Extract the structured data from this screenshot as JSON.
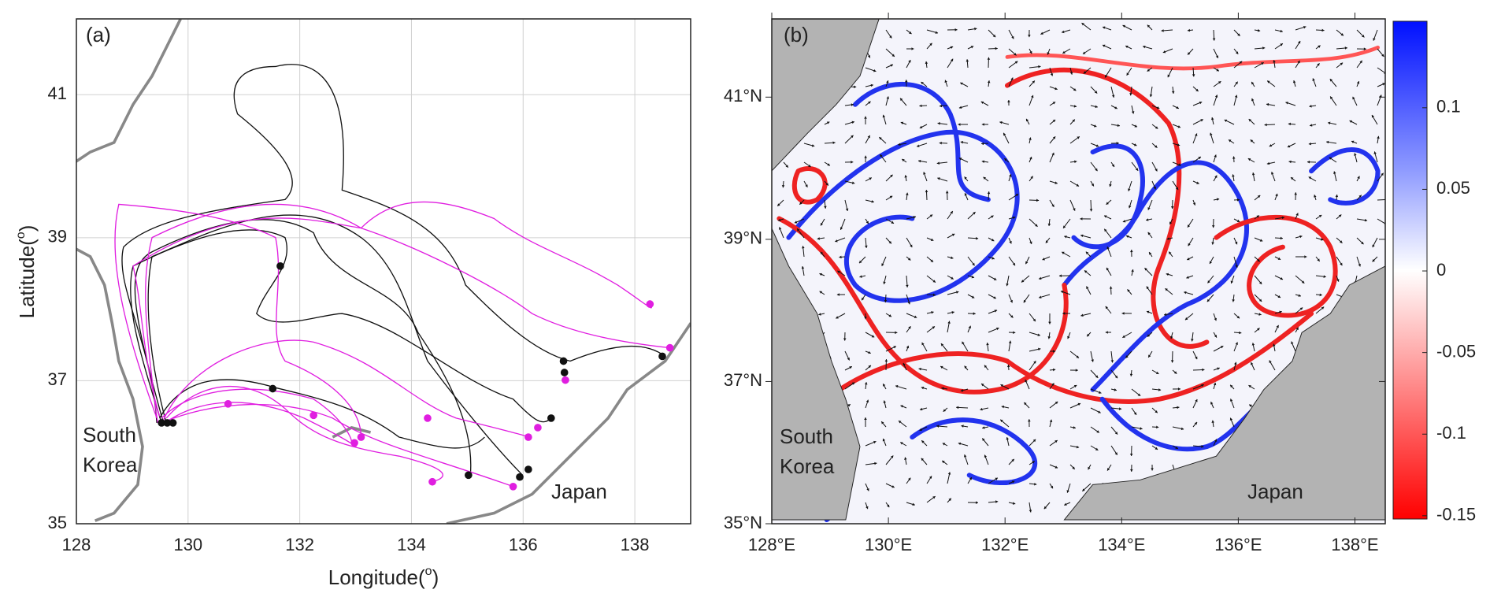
{
  "panels": [
    {
      "label": "(a)",
      "xlabel": "Longitude(",
      "xlabel_sup": "o",
      "xlabel_end": ")",
      "ylabel": "Latitude(",
      "ylabel_sup": "o",
      "ylabel_end": ")",
      "xlim": [
        128,
        139.0
      ],
      "ylim": [
        35,
        42.06
      ],
      "xticks": [
        128,
        130,
        132,
        134,
        136,
        138
      ],
      "yticks": [
        35,
        37,
        39,
        41
      ],
      "regions": [
        "South",
        "Korea",
        "Japan"
      ],
      "grid": true
    },
    {
      "label": "(b)",
      "xlim": [
        128,
        138.52
      ],
      "ylim": [
        35,
        42.1
      ],
      "xticks": [
        {
          "value": 128,
          "label": "128°E"
        },
        {
          "value": 130,
          "label": "130°E"
        },
        {
          "value": 132,
          "label": "132°E"
        },
        {
          "value": 134,
          "label": "134°E"
        },
        {
          "value": 136,
          "label": "136°E"
        },
        {
          "value": 138,
          "label": "138°E"
        }
      ],
      "yticks": [
        {
          "value": 35,
          "label": "35°N"
        },
        {
          "value": 37,
          "label": "37°N"
        },
        {
          "value": 39,
          "label": "39°N"
        },
        {
          "value": 41,
          "label": "41°N"
        }
      ],
      "regions": [
        "South",
        "Korea",
        "Japan"
      ],
      "colorbar": {
        "clim": [
          -0.152,
          0.153
        ],
        "ticks": [
          0.1,
          0.05,
          0,
          -0.05,
          -0.1,
          -0.15
        ]
      }
    }
  ]
}
